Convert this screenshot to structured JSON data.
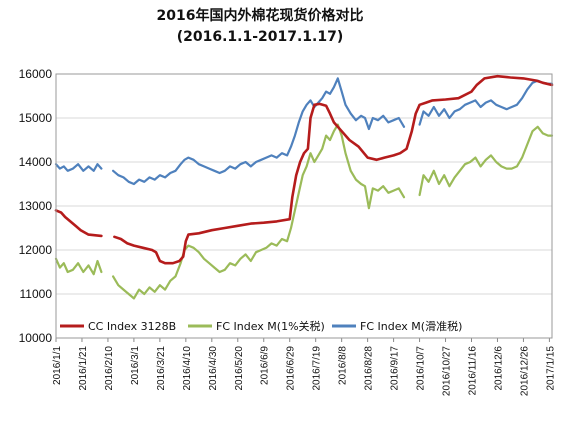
{
  "chart_data": {
    "type": "line",
    "title": "2016年国内外棉花现货价格对比",
    "subtitle": "(2016.1.1-2017.1.17)",
    "ylim": [
      10000,
      16000
    ],
    "y_ticks": [
      "10000",
      "11000",
      "12000",
      "13000",
      "14000",
      "15000",
      "16000"
    ],
    "x_ticks": [
      "2016/1/1",
      "2016/1/21",
      "2016/2/10",
      "2016/3/1",
      "2016/3/21",
      "2016/4/10",
      "2016/4/30",
      "2016/5/20",
      "2016/6/9",
      "2016/6/29",
      "2016/7/19",
      "2016/8/8",
      "2016/8/28",
      "2016/9/17",
      "2016/10/7",
      "2016/10/27",
      "2016/11/16",
      "2016/12/6",
      "2016/12/26",
      "2017/1/15"
    ],
    "x_range": [
      "2016/1/1",
      "2017/1/17"
    ],
    "grid": "horizontal",
    "legend_position": "bottom",
    "series": [
      {
        "name": "CC Index 3128B",
        "color": "#b51c1c",
        "points": [
          [
            "2016/1/1",
            12900
          ],
          [
            "2016/1/5",
            12850
          ],
          [
            "2016/1/8",
            12750
          ],
          [
            "2016/1/12",
            12650
          ],
          [
            "2016/1/16",
            12550
          ],
          [
            "2016/1/20",
            12450
          ],
          [
            "2016/1/26",
            12350
          ],
          [
            "2016/2/5",
            12320
          ],
          [
            "2016/2/10",
            null
          ],
          [
            "2016/2/15",
            12300
          ],
          [
            "2016/2/20",
            12250
          ],
          [
            "2016/2/25",
            12150
          ],
          [
            "2016/3/1",
            12100
          ],
          [
            "2016/3/8",
            12050
          ],
          [
            "2016/3/15",
            12000
          ],
          [
            "2016/3/18",
            11950
          ],
          [
            "2016/3/21",
            11750
          ],
          [
            "2016/3/25",
            11700
          ],
          [
            "2016/3/31",
            11700
          ],
          [
            "2016/4/5",
            11750
          ],
          [
            "2016/4/8",
            11850
          ],
          [
            "2016/4/10",
            12200
          ],
          [
            "2016/4/12",
            12350
          ],
          [
            "2016/4/20",
            12380
          ],
          [
            "2016/4/30",
            12450
          ],
          [
            "2016/5/10",
            12500
          ],
          [
            "2016/5/20",
            12550
          ],
          [
            "2016/5/30",
            12600
          ],
          [
            "2016/6/9",
            12620
          ],
          [
            "2016/6/19",
            12650
          ],
          [
            "2016/6/29",
            12700
          ],
          [
            "2016/7/1",
            13200
          ],
          [
            "2016/7/4",
            13700
          ],
          [
            "2016/7/7",
            14000
          ],
          [
            "2016/7/10",
            14200
          ],
          [
            "2016/7/13",
            14300
          ],
          [
            "2016/7/15",
            15000
          ],
          [
            "2016/7/18",
            15300
          ],
          [
            "2016/7/22",
            15320
          ],
          [
            "2016/7/27",
            15280
          ],
          [
            "2016/7/30",
            15100
          ],
          [
            "2016/8/2",
            14900
          ],
          [
            "2016/8/8",
            14700
          ],
          [
            "2016/8/14",
            14500
          ],
          [
            "2016/8/21",
            14350
          ],
          [
            "2016/8/28",
            14100
          ],
          [
            "2016/9/4",
            14050
          ],
          [
            "2016/9/10",
            14100
          ],
          [
            "2016/9/17",
            14150
          ],
          [
            "2016/9/22",
            14200
          ],
          [
            "2016/9/27",
            14300
          ],
          [
            "2016/10/1",
            14700
          ],
          [
            "2016/10/4",
            15100
          ],
          [
            "2016/10/7",
            15300
          ],
          [
            "2016/10/12",
            15350
          ],
          [
            "2016/10/17",
            15400
          ],
          [
            "2016/10/27",
            15420
          ],
          [
            "2016/11/6",
            15450
          ],
          [
            "2016/11/16",
            15600
          ],
          [
            "2016/11/20",
            15750
          ],
          [
            "2016/11/26",
            15900
          ],
          [
            "2016/12/6",
            15950
          ],
          [
            "2016/12/16",
            15920
          ],
          [
            "2016/12/26",
            15900
          ],
          [
            "2017/1/5",
            15850
          ],
          [
            "2017/1/10",
            15800
          ],
          [
            "2017/1/17",
            15750
          ]
        ]
      },
      {
        "name": "FC Index M(1%关税)",
        "color": "#9bbb59",
        "points": [
          [
            "2016/1/1",
            11800
          ],
          [
            "2016/1/4",
            11600
          ],
          [
            "2016/1/7",
            11700
          ],
          [
            "2016/1/10",
            11500
          ],
          [
            "2016/1/14",
            11550
          ],
          [
            "2016/1/18",
            11700
          ],
          [
            "2016/1/22",
            11500
          ],
          [
            "2016/1/26",
            11650
          ],
          [
            "2016/1/30",
            11450
          ],
          [
            "2016/2/2",
            11750
          ],
          [
            "2016/2/5",
            11500
          ],
          [
            "2016/2/8",
            null
          ],
          [
            "2016/2/14",
            11400
          ],
          [
            "2016/2/18",
            11200
          ],
          [
            "2016/2/22",
            11100
          ],
          [
            "2016/2/26",
            11000
          ],
          [
            "2016/3/1",
            10900
          ],
          [
            "2016/3/5",
            11100
          ],
          [
            "2016/3/9",
            11000
          ],
          [
            "2016/3/13",
            11150
          ],
          [
            "2016/3/17",
            11050
          ],
          [
            "2016/3/21",
            11200
          ],
          [
            "2016/3/25",
            11100
          ],
          [
            "2016/3/29",
            11300
          ],
          [
            "2016/4/2",
            11400
          ],
          [
            "2016/4/6",
            11700
          ],
          [
            "2016/4/9",
            12000
          ],
          [
            "2016/4/12",
            12100
          ],
          [
            "2016/4/16",
            12050
          ],
          [
            "2016/4/20",
            11950
          ],
          [
            "2016/4/24",
            11800
          ],
          [
            "2016/4/28",
            11700
          ],
          [
            "2016/5/2",
            11600
          ],
          [
            "2016/5/6",
            11500
          ],
          [
            "2016/5/10",
            11550
          ],
          [
            "2016/5/14",
            11700
          ],
          [
            "2016/5/18",
            11650
          ],
          [
            "2016/5/22",
            11800
          ],
          [
            "2016/5/26",
            11900
          ],
          [
            "2016/5/30",
            11750
          ],
          [
            "2016/6/3",
            11950
          ],
          [
            "2016/6/7",
            12000
          ],
          [
            "2016/6/11",
            12050
          ],
          [
            "2016/6/15",
            12150
          ],
          [
            "2016/6/19",
            12100
          ],
          [
            "2016/6/23",
            12250
          ],
          [
            "2016/6/27",
            12200
          ],
          [
            "2016/6/30",
            12500
          ],
          [
            "2016/7/3",
            12900
          ],
          [
            "2016/7/6",
            13300
          ],
          [
            "2016/7/9",
            13700
          ],
          [
            "2016/7/12",
            13900
          ],
          [
            "2016/7/15",
            14200
          ],
          [
            "2016/7/18",
            14000
          ],
          [
            "2016/7/21",
            14150
          ],
          [
            "2016/7/24",
            14300
          ],
          [
            "2016/7/27",
            14600
          ],
          [
            "2016/7/30",
            14500
          ],
          [
            "2016/8/2",
            14700
          ],
          [
            "2016/8/5",
            14850
          ],
          [
            "2016/8/8",
            14600
          ],
          [
            "2016/8/11",
            14200
          ],
          [
            "2016/8/15",
            13800
          ],
          [
            "2016/8/19",
            13600
          ],
          [
            "2016/8/23",
            13500
          ],
          [
            "2016/8/26",
            13450
          ],
          [
            "2016/8/29",
            12950
          ],
          [
            "2016/9/1",
            13400
          ],
          [
            "2016/9/5",
            13350
          ],
          [
            "2016/9/9",
            13450
          ],
          [
            "2016/9/13",
            13300
          ],
          [
            "2016/9/17",
            13350
          ],
          [
            "2016/9/21",
            13400
          ],
          [
            "2016/9/25",
            13200
          ],
          [
            "2016/9/28",
            null
          ],
          [
            "2016/10/7",
            13250
          ],
          [
            "2016/10/10",
            13700
          ],
          [
            "2016/10/14",
            13550
          ],
          [
            "2016/10/18",
            13800
          ],
          [
            "2016/10/22",
            13500
          ],
          [
            "2016/10/26",
            13700
          ],
          [
            "2016/10/30",
            13450
          ],
          [
            "2016/11/3",
            13650
          ],
          [
            "2016/11/7",
            13800
          ],
          [
            "2016/11/11",
            13950
          ],
          [
            "2016/11/15",
            14000
          ],
          [
            "2016/11/19",
            14100
          ],
          [
            "2016/11/23",
            13900
          ],
          [
            "2016/11/27",
            14050
          ],
          [
            "2016/12/1",
            14150
          ],
          [
            "2016/12/5",
            14000
          ],
          [
            "2016/12/9",
            13900
          ],
          [
            "2016/12/13",
            13850
          ],
          [
            "2016/12/17",
            13850
          ],
          [
            "2016/12/21",
            13900
          ],
          [
            "2016/12/25",
            14100
          ],
          [
            "2016/12/29",
            14400
          ],
          [
            "2017/1/2",
            14700
          ],
          [
            "2017/1/6",
            14800
          ],
          [
            "2017/1/10",
            14650
          ],
          [
            "2017/1/14",
            14600
          ],
          [
            "2017/1/17",
            14600
          ]
        ]
      },
      {
        "name": "FC Index M(滑准税)",
        "color": "#4f81bd",
        "points": [
          [
            "2016/1/1",
            13950
          ],
          [
            "2016/1/4",
            13850
          ],
          [
            "2016/1/7",
            13900
          ],
          [
            "2016/1/10",
            13800
          ],
          [
            "2016/1/14",
            13850
          ],
          [
            "2016/1/18",
            13950
          ],
          [
            "2016/1/22",
            13800
          ],
          [
            "2016/1/26",
            13900
          ],
          [
            "2016/1/30",
            13800
          ],
          [
            "2016/2/2",
            13950
          ],
          [
            "2016/2/5",
            13850
          ],
          [
            "2016/2/8",
            null
          ],
          [
            "2016/2/14",
            13800
          ],
          [
            "2016/2/18",
            13700
          ],
          [
            "2016/2/22",
            13650
          ],
          [
            "2016/2/26",
            13550
          ],
          [
            "2016/3/1",
            13500
          ],
          [
            "2016/3/5",
            13600
          ],
          [
            "2016/3/9",
            13550
          ],
          [
            "2016/3/13",
            13650
          ],
          [
            "2016/3/17",
            13600
          ],
          [
            "2016/3/21",
            13700
          ],
          [
            "2016/3/25",
            13650
          ],
          [
            "2016/3/29",
            13750
          ],
          [
            "2016/4/2",
            13800
          ],
          [
            "2016/4/6",
            13950
          ],
          [
            "2016/4/9",
            14050
          ],
          [
            "2016/4/12",
            14100
          ],
          [
            "2016/4/16",
            14050
          ],
          [
            "2016/4/20",
            13950
          ],
          [
            "2016/4/24",
            13900
          ],
          [
            "2016/4/28",
            13850
          ],
          [
            "2016/5/2",
            13800
          ],
          [
            "2016/5/6",
            13750
          ],
          [
            "2016/5/10",
            13800
          ],
          [
            "2016/5/14",
            13900
          ],
          [
            "2016/5/18",
            13850
          ],
          [
            "2016/5/22",
            13950
          ],
          [
            "2016/5/26",
            14000
          ],
          [
            "2016/5/30",
            13900
          ],
          [
            "2016/6/3",
            14000
          ],
          [
            "2016/6/7",
            14050
          ],
          [
            "2016/6/11",
            14100
          ],
          [
            "2016/6/15",
            14150
          ],
          [
            "2016/6/19",
            14100
          ],
          [
            "2016/6/23",
            14200
          ],
          [
            "2016/6/27",
            14150
          ],
          [
            "2016/6/30",
            14350
          ],
          [
            "2016/7/3",
            14600
          ],
          [
            "2016/7/6",
            14900
          ],
          [
            "2016/7/9",
            15150
          ],
          [
            "2016/7/12",
            15300
          ],
          [
            "2016/7/15",
            15400
          ],
          [
            "2016/7/18",
            15250
          ],
          [
            "2016/7/21",
            15350
          ],
          [
            "2016/7/24",
            15450
          ],
          [
            "2016/7/27",
            15600
          ],
          [
            "2016/7/30",
            15550
          ],
          [
            "2016/8/2",
            15700
          ],
          [
            "2016/8/5",
            15900
          ],
          [
            "2016/8/8",
            15600
          ],
          [
            "2016/8/11",
            15300
          ],
          [
            "2016/8/15",
            15100
          ],
          [
            "2016/8/19",
            14950
          ],
          [
            "2016/8/23",
            15050
          ],
          [
            "2016/8/26",
            15000
          ],
          [
            "2016/8/29",
            14750
          ],
          [
            "2016/9/1",
            15000
          ],
          [
            "2016/9/5",
            14950
          ],
          [
            "2016/9/9",
            15050
          ],
          [
            "2016/9/13",
            14900
          ],
          [
            "2016/9/17",
            14950
          ],
          [
            "2016/9/21",
            15000
          ],
          [
            "2016/9/25",
            14800
          ],
          [
            "2016/9/28",
            null
          ],
          [
            "2016/10/7",
            14850
          ],
          [
            "2016/10/10",
            15150
          ],
          [
            "2016/10/14",
            15050
          ],
          [
            "2016/10/18",
            15250
          ],
          [
            "2016/10/22",
            15050
          ],
          [
            "2016/10/26",
            15200
          ],
          [
            "2016/10/30",
            15000
          ],
          [
            "2016/11/3",
            15150
          ],
          [
            "2016/11/7",
            15200
          ],
          [
            "2016/11/11",
            15300
          ],
          [
            "2016/11/15",
            15350
          ],
          [
            "2016/11/19",
            15400
          ],
          [
            "2016/11/23",
            15250
          ],
          [
            "2016/11/27",
            15350
          ],
          [
            "2016/12/1",
            15400
          ],
          [
            "2016/12/5",
            15300
          ],
          [
            "2016/12/9",
            15250
          ],
          [
            "2016/12/13",
            15200
          ],
          [
            "2016/12/17",
            15250
          ],
          [
            "2016/12/21",
            15300
          ],
          [
            "2016/12/25",
            15450
          ],
          [
            "2016/12/29",
            15650
          ],
          [
            "2017/1/2",
            15800
          ],
          [
            "2017/1/6",
            15850
          ],
          [
            "2017/1/10",
            15800
          ],
          [
            "2017/1/14",
            15780
          ],
          [
            "2017/1/17",
            15780
          ]
        ]
      }
    ]
  }
}
